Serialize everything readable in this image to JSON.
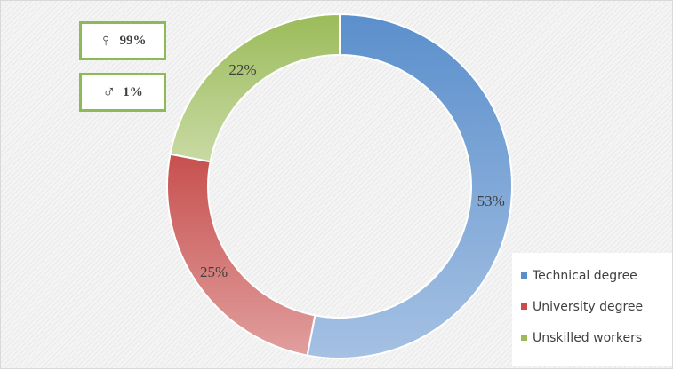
{
  "chart_data": {
    "type": "pie",
    "style": "doughnut",
    "categories": [
      "Technical degree",
      "University degree",
      "Unskilled workers"
    ],
    "values": [
      53,
      25,
      22
    ],
    "value_labels": [
      "53%",
      "25%",
      "22%"
    ],
    "colors": [
      "#5b8fcc",
      "#c7504e",
      "#9bbb59"
    ],
    "legend_position": "bottom-right"
  },
  "gender_boxes": [
    {
      "symbol": "♀",
      "value": "99%"
    },
    {
      "symbol": "♂",
      "value": "1%"
    }
  ]
}
